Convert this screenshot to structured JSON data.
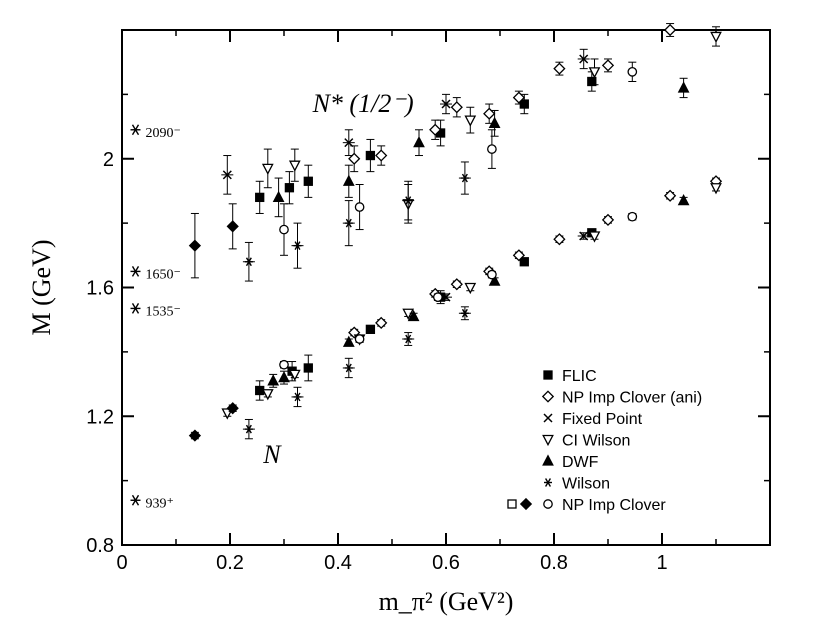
{
  "chart_data": {
    "type": "scatter",
    "title": "",
    "xlabel": "m_π² (GeV²)",
    "ylabel": "M (GeV)",
    "xlim": [
      0,
      1.2
    ],
    "ylim": [
      0.8,
      2.4
    ],
    "x_ticks": [
      0,
      0.2,
      0.4,
      0.6,
      0.8,
      1
    ],
    "x_tick_labels": [
      "0",
      "0.2",
      "0.4",
      "0.6",
      "0.8",
      "1"
    ],
    "y_ticks": [
      0.8,
      1.2,
      1.6,
      2.0
    ],
    "y_tick_labels": [
      "0.8",
      "1.2",
      "1.6",
      "2"
    ],
    "annotations": [
      {
        "text": "N* (1/2⁻)",
        "x": 0.39,
        "y": 2.17
      },
      {
        "text": "N",
        "x": 0.28,
        "y": 1.08
      }
    ],
    "experimental": [
      {
        "label": "2090⁻",
        "y": 2.09
      },
      {
        "label": "1650⁻",
        "y": 1.65
      },
      {
        "label": "1535⁻",
        "y": 1.535
      },
      {
        "label": "939⁺",
        "y": 0.939
      }
    ],
    "legend": [
      {
        "marker": "square",
        "label": "FLIC"
      },
      {
        "marker": "diamond-open",
        "label": "NP Imp Clover (ani)"
      },
      {
        "marker": "x",
        "label": "Fixed Point"
      },
      {
        "marker": "triangle-down-open",
        "label": "CI Wilson"
      },
      {
        "marker": "triangle-up",
        "label": "DWF"
      },
      {
        "marker": "asterisk",
        "label": "Wilson"
      },
      {
        "marker": "square-open+diamond+circle-open",
        "label": "NP Imp Clover"
      }
    ],
    "series": [
      {
        "name": "FLIC",
        "marker": "square",
        "points": [
          {
            "x": 0.255,
            "y": 1.28,
            "e": 0.03
          },
          {
            "x": 0.315,
            "y": 1.34,
            "e": 0.03
          },
          {
            "x": 0.345,
            "y": 1.35,
            "e": 0.04
          },
          {
            "x": 0.46,
            "y": 1.47,
            "e": 0.01
          },
          {
            "x": 0.59,
            "y": 1.57,
            "e": 0.02
          },
          {
            "x": 0.745,
            "y": 1.68,
            "e": 0.01
          },
          {
            "x": 0.87,
            "y": 1.77,
            "e": 0.01
          },
          {
            "x": 0.255,
            "y": 1.88,
            "e": 0.05
          },
          {
            "x": 0.31,
            "y": 1.91,
            "e": 0.05
          },
          {
            "x": 0.345,
            "y": 1.93,
            "e": 0.05
          },
          {
            "x": 0.46,
            "y": 2.01,
            "e": 0.05
          },
          {
            "x": 0.59,
            "y": 2.08,
            "e": 0.04
          },
          {
            "x": 0.745,
            "y": 2.17,
            "e": 0.03
          },
          {
            "x": 0.87,
            "y": 2.24,
            "e": 0.03
          }
        ]
      },
      {
        "name": "NP Imp Clover (ani)",
        "marker": "diamond-open",
        "points": [
          {
            "x": 0.43,
            "y": 1.46,
            "e": 0.01
          },
          {
            "x": 0.48,
            "y": 1.49,
            "e": 0.01
          },
          {
            "x": 0.58,
            "y": 1.58,
            "e": 0.01
          },
          {
            "x": 0.62,
            "y": 1.61,
            "e": 0.01
          },
          {
            "x": 0.68,
            "y": 1.65,
            "e": 0.01
          },
          {
            "x": 0.735,
            "y": 1.7,
            "e": 0.01
          },
          {
            "x": 0.81,
            "y": 1.75,
            "e": 0.01
          },
          {
            "x": 0.9,
            "y": 1.81,
            "e": 0.01
          },
          {
            "x": 1.015,
            "y": 1.885,
            "e": 0.01
          },
          {
            "x": 1.1,
            "y": 1.93,
            "e": 0.01
          },
          {
            "x": 0.43,
            "y": 2.0,
            "e": 0.04
          },
          {
            "x": 0.48,
            "y": 2.01,
            "e": 0.03
          },
          {
            "x": 0.58,
            "y": 2.09,
            "e": 0.03
          },
          {
            "x": 0.62,
            "y": 2.16,
            "e": 0.03
          },
          {
            "x": 0.68,
            "y": 2.14,
            "e": 0.03
          },
          {
            "x": 0.735,
            "y": 2.19,
            "e": 0.02
          },
          {
            "x": 0.81,
            "y": 2.28,
            "e": 0.02
          },
          {
            "x": 0.9,
            "y": 2.29,
            "e": 0.02
          },
          {
            "x": 1.015,
            "y": 2.4,
            "e": 0.02
          }
        ]
      },
      {
        "name": "Fixed Point",
        "marker": "x",
        "points": [
          {
            "x": 0.195,
            "y": 1.95,
            "e": 0.06
          },
          {
            "x": 0.42,
            "y": 2.05,
            "e": 0.04
          },
          {
            "x": 0.6,
            "y": 2.17,
            "e": 0.03
          },
          {
            "x": 0.855,
            "y": 2.31,
            "e": 0.03
          },
          {
            "x": 0.855,
            "y": 1.76,
            "e": 0.01
          },
          {
            "x": 0.6,
            "y": 1.57,
            "e": 0.01
          }
        ]
      },
      {
        "name": "CI Wilson",
        "marker": "triangle-down-open",
        "points": [
          {
            "x": 0.195,
            "y": 1.21,
            "e": 0.01
          },
          {
            "x": 0.27,
            "y": 1.27,
            "e": 0.01
          },
          {
            "x": 0.32,
            "y": 1.33,
            "e": 0.01
          },
          {
            "x": 0.44,
            "y": 1.44,
            "e": 0.01
          },
          {
            "x": 0.53,
            "y": 1.52,
            "e": 0.01
          },
          {
            "x": 0.645,
            "y": 1.6,
            "e": 0.01
          },
          {
            "x": 0.875,
            "y": 1.76,
            "e": 0.01
          },
          {
            "x": 1.1,
            "y": 1.91,
            "e": 0.01
          },
          {
            "x": 0.27,
            "y": 1.97,
            "e": 0.06
          },
          {
            "x": 0.32,
            "y": 1.98,
            "e": 0.05
          },
          {
            "x": 0.53,
            "y": 1.86,
            "e": 0.06
          },
          {
            "x": 0.645,
            "y": 2.12,
            "e": 0.04
          },
          {
            "x": 0.875,
            "y": 2.27,
            "e": 0.04
          },
          {
            "x": 1.1,
            "y": 2.38,
            "e": 0.03
          }
        ]
      },
      {
        "name": "DWF",
        "marker": "triangle-up",
        "points": [
          {
            "x": 0.28,
            "y": 1.31,
            "e": 0.02
          },
          {
            "x": 0.3,
            "y": 1.32,
            "e": 0.02
          },
          {
            "x": 0.42,
            "y": 1.43,
            "e": 0.01
          },
          {
            "x": 0.54,
            "y": 1.51,
            "e": 0.01
          },
          {
            "x": 0.69,
            "y": 1.62,
            "e": 0.01
          },
          {
            "x": 1.04,
            "y": 1.87,
            "e": 0.01
          },
          {
            "x": 0.29,
            "y": 1.88,
            "e": 0.06
          },
          {
            "x": 0.42,
            "y": 1.93,
            "e": 0.05
          },
          {
            "x": 0.55,
            "y": 2.05,
            "e": 0.04
          },
          {
            "x": 0.69,
            "y": 2.11,
            "e": 0.04
          },
          {
            "x": 1.04,
            "y": 2.22,
            "e": 0.03
          }
        ]
      },
      {
        "name": "Wilson",
        "marker": "asterisk",
        "points": [
          {
            "x": 0.235,
            "y": 1.16,
            "e": 0.03
          },
          {
            "x": 0.325,
            "y": 1.26,
            "e": 0.03
          },
          {
            "x": 0.42,
            "y": 1.35,
            "e": 0.03
          },
          {
            "x": 0.53,
            "y": 1.44,
            "e": 0.02
          },
          {
            "x": 0.635,
            "y": 1.52,
            "e": 0.02
          },
          {
            "x": 0.235,
            "y": 1.68,
            "e": 0.06
          },
          {
            "x": 0.325,
            "y": 1.73,
            "e": 0.07
          },
          {
            "x": 0.42,
            "y": 1.8,
            "e": 0.07
          },
          {
            "x": 0.53,
            "y": 1.87,
            "e": 0.06
          },
          {
            "x": 0.635,
            "y": 1.94,
            "e": 0.05
          }
        ]
      },
      {
        "name": "NP Imp Clover",
        "marker": "circle-open",
        "points": [
          {
            "x": 0.3,
            "y": 1.36,
            "e": 0.01
          },
          {
            "x": 0.44,
            "y": 1.44,
            "e": 0.01
          },
          {
            "x": 0.585,
            "y": 1.57,
            "e": 0.01
          },
          {
            "x": 0.685,
            "y": 1.64,
            "e": 0.01
          },
          {
            "x": 0.945,
            "y": 1.82,
            "e": 0.01
          },
          {
            "x": 0.3,
            "y": 1.78,
            "e": 0.08
          },
          {
            "x": 0.44,
            "y": 1.85,
            "e": 0.07
          },
          {
            "x": 0.685,
            "y": 2.03,
            "e": 0.06
          },
          {
            "x": 0.945,
            "y": 2.27,
            "e": 0.03
          }
        ]
      },
      {
        "name": "NP Imp Clover (filled diamond)",
        "marker": "diamond",
        "points": [
          {
            "x": 0.135,
            "y": 1.14,
            "e": 0.01
          },
          {
            "x": 0.205,
            "y": 1.225,
            "e": 0.01
          },
          {
            "x": 0.135,
            "y": 1.73,
            "e": 0.1
          },
          {
            "x": 0.205,
            "y": 1.79,
            "e": 0.07
          }
        ]
      }
    ]
  }
}
